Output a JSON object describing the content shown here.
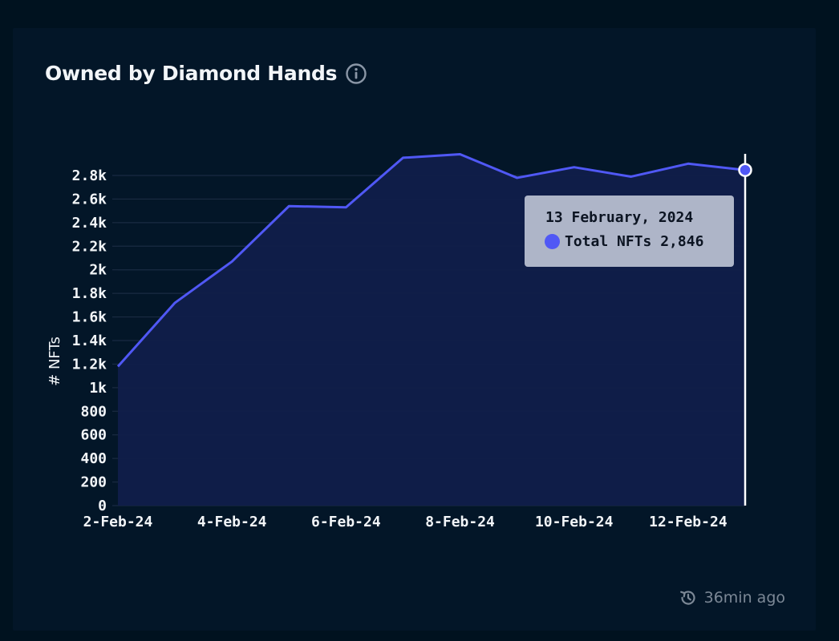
{
  "card": {
    "title": "Owned by Diamond Hands",
    "info_icon": "info-circle-icon",
    "updated_icon": "history-icon",
    "updated_label": "36min ago"
  },
  "tooltip": {
    "date": "13 February, 2024",
    "series_label": "Total NFTs",
    "value_label": "2,846"
  },
  "colors": {
    "line": "#5058f5",
    "area": "#101e4a",
    "grid": "#1a2b42",
    "background": "#031628",
    "page": "#00121f"
  },
  "chart_data": {
    "type": "area",
    "ylabel": "# NFTs",
    "x": [
      "2-Feb-24",
      "3-Feb-24",
      "4-Feb-24",
      "5-Feb-24",
      "6-Feb-24",
      "7-Feb-24",
      "8-Feb-24",
      "9-Feb-24",
      "10-Feb-24",
      "11-Feb-24",
      "12-Feb-24",
      "13-Feb-24"
    ],
    "x_tick_labels": [
      "2-Feb-24",
      "4-Feb-24",
      "6-Feb-24",
      "8-Feb-24",
      "10-Feb-24",
      "12-Feb-24"
    ],
    "series": [
      {
        "name": "Total NFTs",
        "values": [
          1180,
          1720,
          2070,
          2540,
          2530,
          2950,
          2980,
          2780,
          2870,
          2790,
          2900,
          2846
        ]
      }
    ],
    "y_ticks": [
      0,
      200,
      400,
      600,
      800,
      1000,
      1200,
      1400,
      1600,
      1800,
      2000,
      2200,
      2400,
      2600,
      2800
    ],
    "y_tick_labels": [
      "0",
      "200",
      "400",
      "600",
      "800",
      "1k",
      "1.2k",
      "1.4k",
      "1.6k",
      "1.8k",
      "2k",
      "2.2k",
      "2.4k",
      "2.6k",
      "2.8k"
    ],
    "ylim": [
      0,
      2800
    ],
    "grid": true,
    "highlighted_x": "13-Feb-24"
  }
}
